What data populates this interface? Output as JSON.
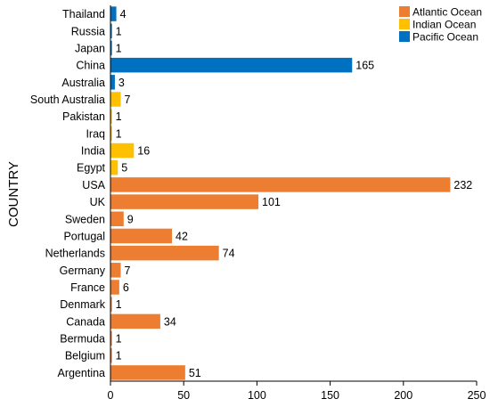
{
  "chart_data": {
    "type": "bar",
    "orientation": "horizontal",
    "ylabel": "COUNTRY",
    "xlabel": "",
    "xlim": [
      0,
      250
    ],
    "xticks": [
      0,
      50,
      100,
      150,
      200,
      250
    ],
    "grid": false,
    "legend_position": "top-right",
    "categories": [
      "Thailand",
      "Russia",
      "Japan",
      "China",
      "Australia",
      "South Australia",
      "Pakistan",
      "Iraq",
      "India",
      "Egypt",
      "USA",
      "UK",
      "Sweden",
      "Portugal",
      "Netherlands",
      "Germany",
      "France",
      "Denmark",
      "Canada",
      "Bermuda",
      "Belgium",
      "Argentina"
    ],
    "values": [
      4,
      1,
      1,
      165,
      3,
      7,
      1,
      1,
      16,
      5,
      232,
      101,
      9,
      42,
      74,
      7,
      6,
      1,
      34,
      1,
      1,
      51
    ],
    "groups": [
      "Pacific Ocean",
      "Pacific Ocean",
      "Pacific Ocean",
      "Pacific Ocean",
      "Pacific Ocean",
      "Indian Ocean",
      "Indian Ocean",
      "Indian Ocean",
      "Indian Ocean",
      "Indian Ocean",
      "Atlantic Ocean",
      "Atlantic Ocean",
      "Atlantic Ocean",
      "Atlantic Ocean",
      "Atlantic Ocean",
      "Atlantic Ocean",
      "Atlantic Ocean",
      "Atlantic Ocean",
      "Atlantic Ocean",
      "Atlantic Ocean",
      "Atlantic Ocean",
      "Atlantic Ocean"
    ],
    "legend": [
      {
        "name": "Atlantic Ocean",
        "color": "#ED7D31"
      },
      {
        "name": "Indian Ocean",
        "color": "#FFC000"
      },
      {
        "name": "Pacific Ocean",
        "color": "#0070C0"
      }
    ]
  }
}
